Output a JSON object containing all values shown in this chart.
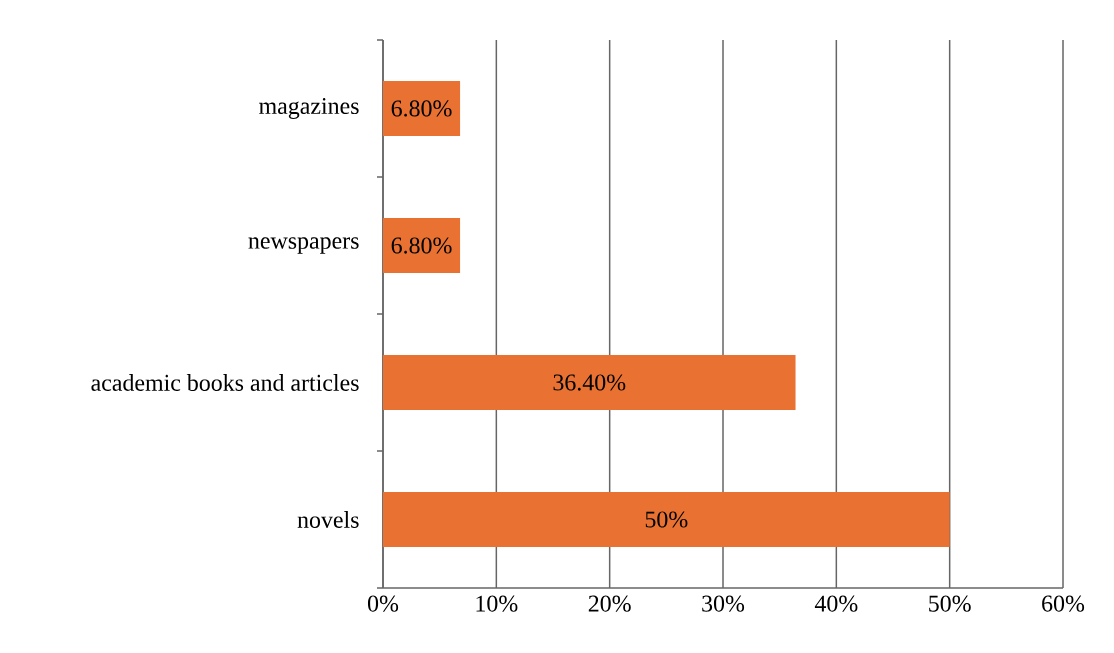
{
  "chart_data": {
    "type": "bar",
    "orientation": "horizontal",
    "categories": [
      "magazines",
      "newspapers",
      "academic books and articles",
      "novels"
    ],
    "values": [
      6.8,
      6.8,
      36.4,
      50
    ],
    "value_labels": [
      "6.80%",
      "6.80%",
      "36.40%",
      "50%"
    ],
    "color": "#e97132",
    "xlim": [
      0,
      60
    ],
    "xticks": [
      {
        "value": 0,
        "label": "0%"
      },
      {
        "value": 10,
        "label": "10%"
      },
      {
        "value": 20,
        "label": "20%"
      },
      {
        "value": 30,
        "label": "30%"
      },
      {
        "value": 40,
        "label": "40%"
      },
      {
        "value": 50,
        "label": "50%"
      },
      {
        "value": 60,
        "label": "60%"
      }
    ],
    "grid": "x"
  }
}
